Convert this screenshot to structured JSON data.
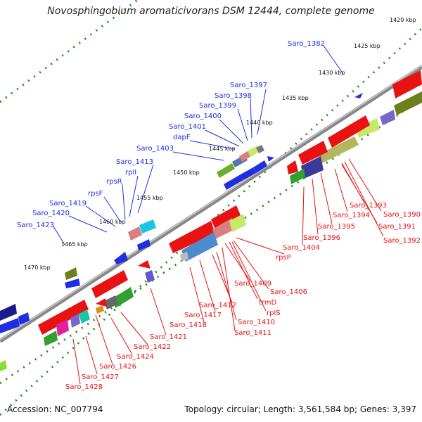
{
  "title": "Novosphingobium aromaticivorans DSM 12444, complete genome",
  "footer": {
    "accession": "Accession: NC_007794",
    "summary": "Topology: circular; Length: 3,561,584 bp; Genes: 3,397"
  },
  "scale_labels": [
    "1420 kbp",
    "1425 kbp",
    "1430 kbp",
    "1435 kbp",
    "1440 kbp",
    "1445 kbp",
    "1450 kbp",
    "1455 kbp",
    "1460 kbp",
    "1465 kbp",
    "1470 kbp"
  ],
  "genes_top": [
    "Saro_1382",
    "Saro_1397",
    "Saro_1398",
    "Saro_1399",
    "Saro_1400",
    "Saro_1401",
    "dapF",
    "Saro_1403",
    "Saro_1413",
    "rplI",
    "rpsR",
    "rpsF",
    "Saro_1419",
    "Saro_1420",
    "Saro_1423"
  ],
  "genes_bottom": [
    "Saro_1393",
    "Saro_1390",
    "Saro_1394",
    "Saro_1391",
    "Saro_1395",
    "Saro_1392",
    "Saro_1396",
    "Saro_1404",
    "rpsP",
    "Saro_1409",
    "Saro_1406",
    "Saro_1412",
    "trmD",
    "Saro_1417",
    "rplS",
    "Saro_1410",
    "Saro_1418",
    "Saro_1411",
    "Saro_1421",
    "Saro_1422",
    "Saro_1424",
    "Saro_1426",
    "Saro_1427",
    "Saro_1428"
  ],
  "colors": {
    "forward_gene": "#1f2ee0",
    "reverse_gene": "#e81212",
    "axis": "#888888",
    "scale_ticks": "#1f8a1f"
  }
}
